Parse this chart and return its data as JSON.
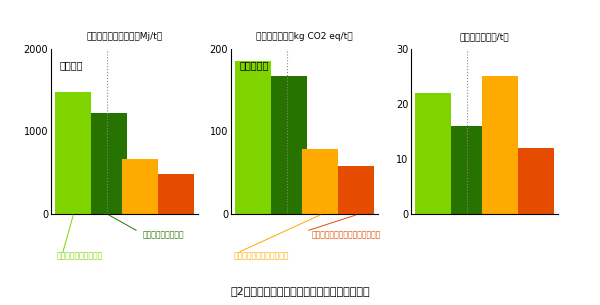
{
  "chart1": {
    "title": "エネルギー投入量　（Mj/t）",
    "label": "テンサイ",
    "ylim": [
      0,
      2000
    ],
    "yticks": [
      0,
      1000,
      2000
    ],
    "bars": [
      {
        "value": 1480,
        "color": "#7fd400"
      },
      {
        "value": 1220,
        "color": "#267300"
      },
      {
        "value": 660,
        "color": "#ffaa00"
      },
      {
        "value": 480,
        "color": "#e64c00"
      }
    ],
    "legend1": "新技術体系（直播）",
    "legend2": "慣行技術体系（移植）",
    "legend1_color": "#267300",
    "legend2_color": "#7fd400"
  },
  "chart2": {
    "title": "地球温暖化　（kg CO2 eq/t）",
    "label": "サトウキビ",
    "ylim": [
      0,
      200
    ],
    "yticks": [
      0,
      100,
      200
    ],
    "bars": [
      {
        "value": 185,
        "color": "#7fd400"
      },
      {
        "value": 167,
        "color": "#267300"
      },
      {
        "value": 78,
        "color": "#ffaa00"
      },
      {
        "value": 58,
        "color": "#e64c00"
      }
    ],
    "legend1": "新技術体系（高バイオマス品種）",
    "legend2": "慣行技術体系（製糖品種）",
    "legend1_color": "#e64c00",
    "legend2_color": "#ffaa00"
  },
  "chart3": {
    "title": "生産費　（千円/t）",
    "label": "",
    "ylim": [
      0,
      30
    ],
    "yticks": [
      0,
      10,
      20,
      30
    ],
    "bars": [
      {
        "value": 22,
        "color": "#7fd400"
      },
      {
        "value": 16,
        "color": "#267300"
      },
      {
        "value": 25,
        "color": "#ffaa00"
      },
      {
        "value": 12,
        "color": "#e64c00"
      }
    ],
    "legend1": "",
    "legend2": "",
    "legend1_color": "#e64c00",
    "legend2_color": "#ffaa00"
  },
  "figure_caption": "図2　慣行技術体系と新技術体系を比較した例",
  "bg_color": "#ffffff"
}
